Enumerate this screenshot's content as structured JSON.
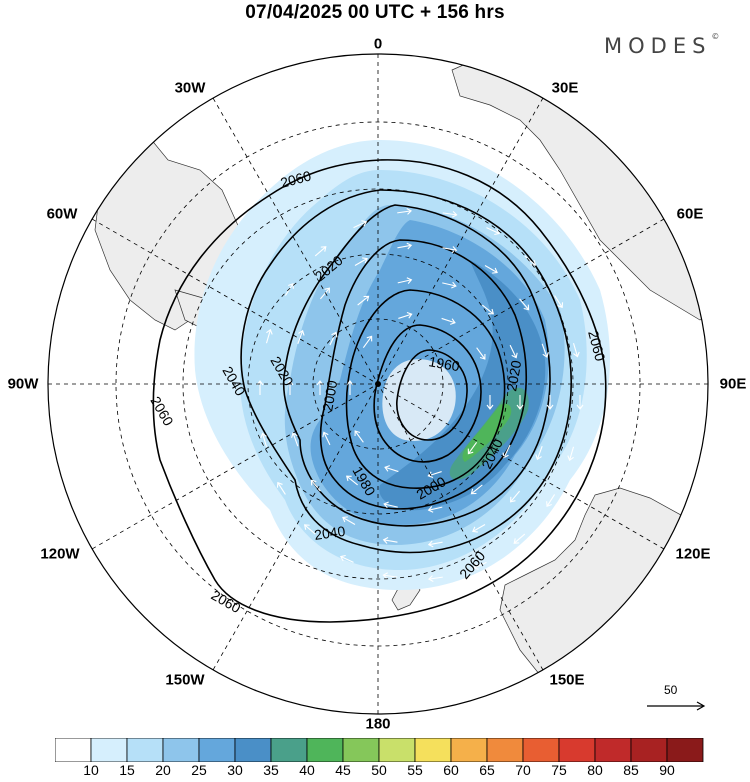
{
  "title": "07/04/2025  00 UTC  + 156 hrs",
  "brand": "MODES",
  "brand_mark": "©",
  "longitude_labels": {
    "l0": "0",
    "l30e": "30E",
    "l60e": "60E",
    "l90e": "90E",
    "l120e": "120E",
    "l150e": "150E",
    "l180": "180",
    "l150w": "150W",
    "l120w": "120W",
    "l90w": "90W",
    "l60w": "60W",
    "l30w": "30W"
  },
  "contour_labels": {
    "c1960": "1960",
    "c1980": "1980",
    "c2000a": "2000",
    "c2000b": "2000",
    "c2020a": "2020",
    "c2020b": "2020",
    "c2020c": "2020",
    "c2040a": "2040",
    "c2040b": "2040",
    "c2040c": "2040",
    "c2060a": "2060",
    "c2060b": "2060",
    "c2060c": "2060",
    "c2060d": "2060",
    "c2060e": "2060"
  },
  "reference_vector": {
    "label": "50"
  },
  "colorbar": {
    "labels": [
      "10",
      "15",
      "20",
      "25",
      "30",
      "35",
      "40",
      "45",
      "50",
      "55",
      "60",
      "65",
      "70",
      "75",
      "80",
      "85",
      "90"
    ],
    "colors": [
      "#ffffff",
      "#d6effd",
      "#b6e0f8",
      "#8ec5eb",
      "#64a7dc",
      "#4a8fc7",
      "#4aa08a",
      "#4fb55a",
      "#85c75a",
      "#c9e06a",
      "#f5e05c",
      "#f5b04a",
      "#f08a3c",
      "#e85e32",
      "#d83a2e",
      "#c02a2a",
      "#a82222",
      "#8a1a1a"
    ]
  },
  "colors": {
    "land": "#ededed",
    "contour": "#000000",
    "graticule": "#000000",
    "vector": "#ffffff"
  }
}
